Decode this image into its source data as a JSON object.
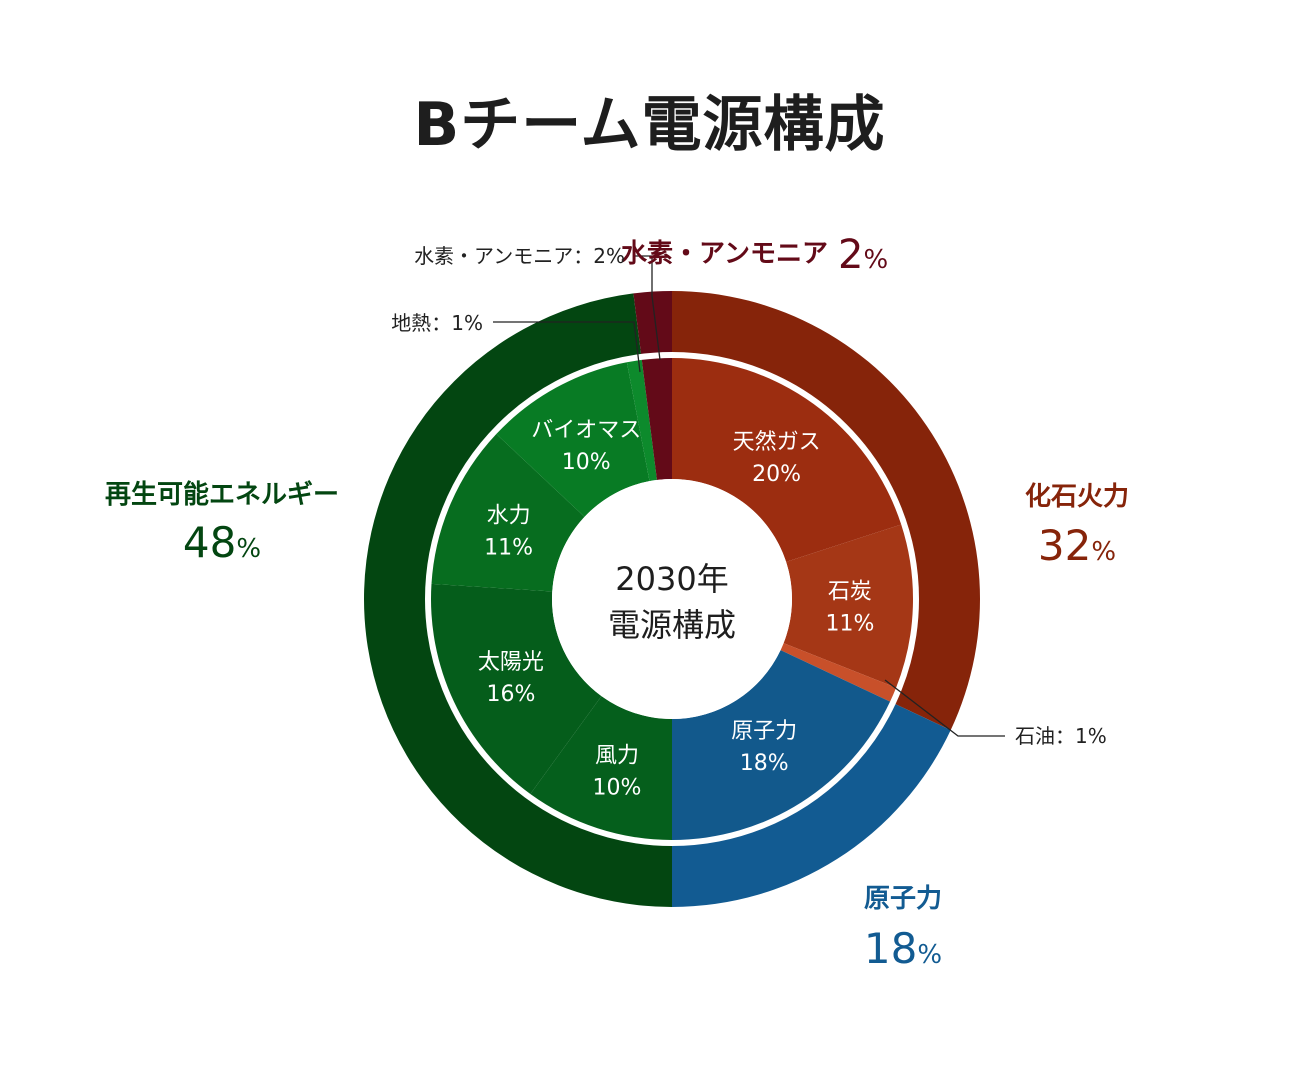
{
  "title": "Bチーム電源構成",
  "chart_data": {
    "type": "pie",
    "center_label": [
      "2030年",
      "電源構成"
    ],
    "unit": "%",
    "outer_ring": [
      {
        "name": "化石火力",
        "value": 32,
        "color": "#86240a",
        "label_color": "#86240a"
      },
      {
        "name": "原子力",
        "value": 18,
        "color": "#125b92",
        "label_color": "#125b92"
      },
      {
        "name": "再生可能エネルギー",
        "value": 48,
        "color": "#034611",
        "label_color": "#034611"
      },
      {
        "name": "水素・アンモニア",
        "value": 2,
        "color": "#630a18",
        "label_color": "#630a18"
      }
    ],
    "inner_ring": [
      {
        "name": "天然ガス",
        "value": 20,
        "color": "#9c2d10"
      },
      {
        "name": "石炭",
        "value": 11,
        "color": "#a53716"
      },
      {
        "name": "石油",
        "value": 1,
        "color": "#c8502a"
      },
      {
        "name": "原子力",
        "value": 18,
        "color": "#12598c"
      },
      {
        "name": "風力",
        "value": 10,
        "color": "#055f1c"
      },
      {
        "name": "太陽光",
        "value": 16,
        "color": "#055d1b"
      },
      {
        "name": "水力",
        "value": 11,
        "color": "#076d1f"
      },
      {
        "name": "バイオマス",
        "value": 10,
        "color": "#087b24"
      },
      {
        "name": "地熱",
        "value": 1,
        "color": "#0d8a2c"
      },
      {
        "name": "水素・アンモニア",
        "value": 2,
        "color": "#630a18"
      }
    ],
    "callouts": [
      "水素・アンモニア：2%",
      "地熱：1%",
      "石油：1%"
    ]
  }
}
